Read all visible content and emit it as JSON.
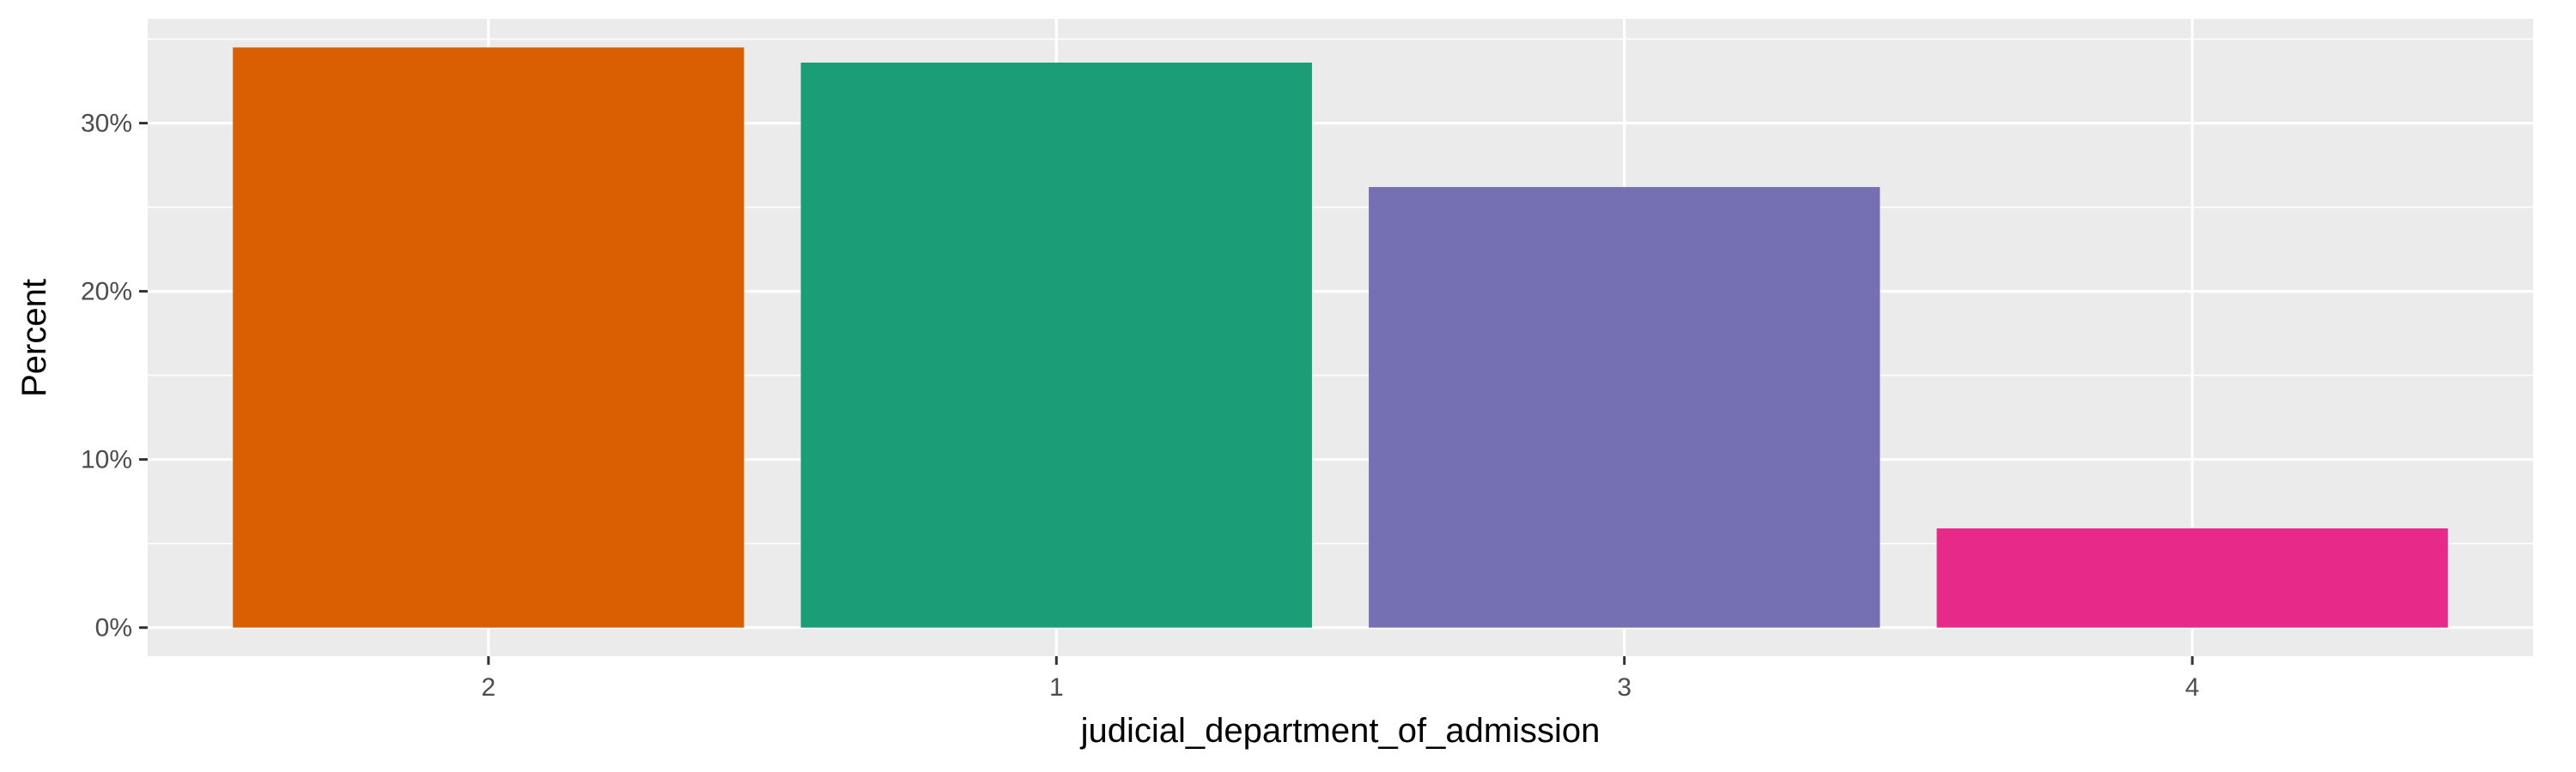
{
  "chart_data": {
    "type": "bar",
    "categories": [
      "2",
      "1",
      "3",
      "4"
    ],
    "values": [
      34.5,
      33.6,
      26.2,
      5.9
    ],
    "colors": [
      "#d95f02",
      "#1b9e77",
      "#7570b3",
      "#e7298a"
    ],
    "xlabel": "judicial_department_of_admission",
    "ylabel": "Percent",
    "ylim": [
      -1.7,
      36.2
    ],
    "yticks": [
      0,
      10,
      20,
      30
    ],
    "ytick_labels": [
      "0%",
      "10%",
      "20%",
      "30%"
    ],
    "panel_background": "#ebebeb",
    "grid": true,
    "legend": "none"
  }
}
